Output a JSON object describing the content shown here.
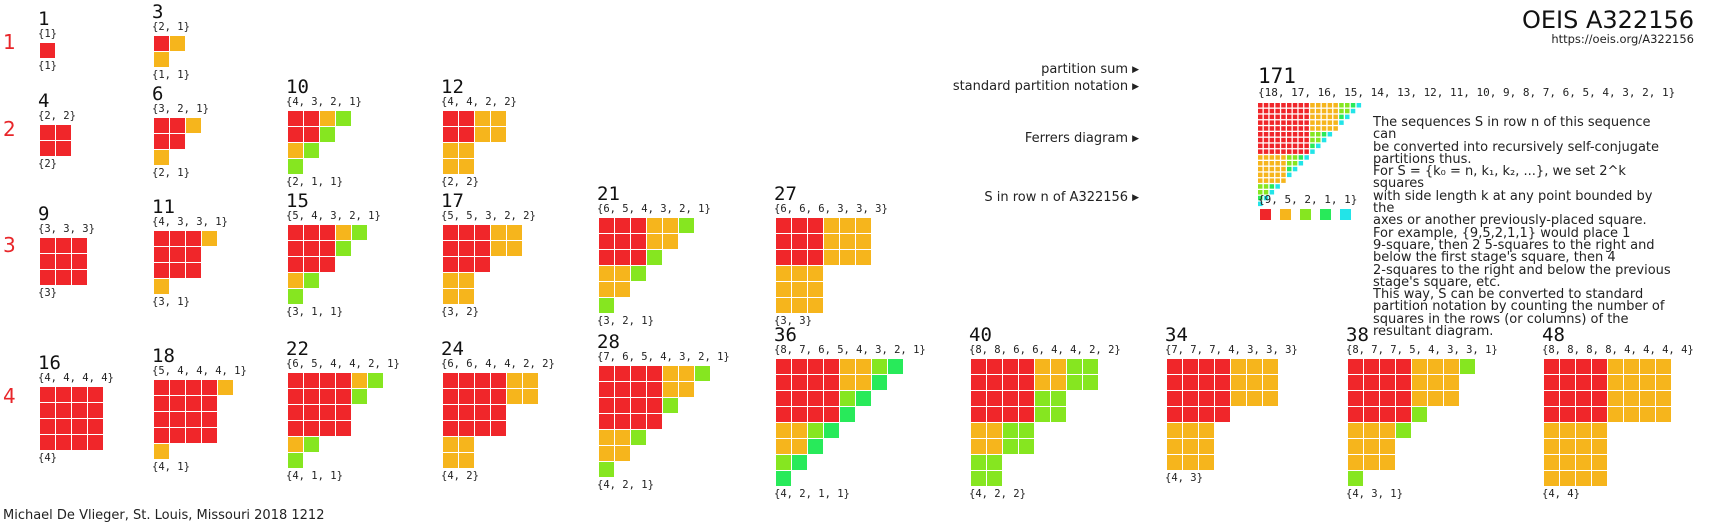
{
  "header": {
    "title": "OEIS A322156",
    "url": "https://oeis.org/A322156"
  },
  "author": "Michael De Vlieger, St. Louis, Missouri 2018 1212",
  "colors": {
    "k4": "#f0262a",
    "k3": "#f6b51c",
    "k2": "#f2bd20",
    "k1": "#86e620",
    "k0": "#28ea5a",
    "kminus": "#22e4e8",
    "row_label": "#e8262a"
  },
  "rows": [
    "1",
    "2",
    "3",
    "4"
  ],
  "items": [
    {
      "sum": "1",
      "top": "{1}",
      "bottom": "{1}",
      "S": [
        1
      ]
    },
    {
      "sum": "3",
      "top": "{2, 1}",
      "bottom": "{1, 1}",
      "S": [
        1,
        1
      ]
    },
    {
      "sum": "4",
      "top": "{2, 2}",
      "bottom": "{2}",
      "S": [
        2
      ]
    },
    {
      "sum": "6",
      "top": "{3, 2, 1}",
      "bottom": "{2, 1}",
      "S": [
        2,
        1
      ]
    },
    {
      "sum": "10",
      "top": "{4, 3, 2, 1}",
      "bottom": "{2, 1, 1}",
      "S": [
        2,
        1,
        1
      ]
    },
    {
      "sum": "12",
      "top": "{4, 4, 2, 2}",
      "bottom": "{2, 2}",
      "S": [
        2,
        2
      ]
    },
    {
      "sum": "9",
      "top": "{3, 3, 3}",
      "bottom": "{3}",
      "S": [
        3
      ]
    },
    {
      "sum": "11",
      "top": "{4, 3, 3, 1}",
      "bottom": "{3, 1}",
      "S": [
        3,
        1
      ]
    },
    {
      "sum": "15",
      "top": "{5, 4, 3, 2, 1}",
      "bottom": "{3, 1, 1}",
      "S": [
        3,
        1,
        1
      ]
    },
    {
      "sum": "17",
      "top": "{5, 5, 3, 2, 2}",
      "bottom": "{3, 2}",
      "S": [
        3,
        2
      ]
    },
    {
      "sum": "21",
      "top": "{6, 5, 4, 3, 2, 1}",
      "bottom": "{3, 2, 1}",
      "S": [
        3,
        2,
        1
      ]
    },
    {
      "sum": "27",
      "top": "{6, 6, 6, 3, 3, 3}",
      "bottom": "{3, 3}",
      "S": [
        3,
        3
      ]
    },
    {
      "sum": "16",
      "top": "{4, 4, 4, 4}",
      "bottom": "{4}",
      "S": [
        4
      ]
    },
    {
      "sum": "18",
      "top": "{5, 4, 4, 4, 1}",
      "bottom": "{4, 1}",
      "S": [
        4,
        1
      ]
    },
    {
      "sum": "22",
      "top": "{6, 5, 4, 4, 2, 1}",
      "bottom": "{4, 1, 1}",
      "S": [
        4,
        1,
        1
      ]
    },
    {
      "sum": "24",
      "top": "{6, 6, 4, 4, 2, 2}",
      "bottom": "{4, 2}",
      "S": [
        4,
        2
      ]
    },
    {
      "sum": "28",
      "top": "{7, 6, 5, 4, 3, 2, 1}",
      "bottom": "{4, 2, 1}",
      "S": [
        4,
        2,
        1
      ]
    },
    {
      "sum": "36",
      "top": "{8, 7, 6, 5, 4, 3, 2, 1}",
      "bottom": "{4, 2, 1, 1}",
      "S": [
        4,
        2,
        1,
        1
      ]
    },
    {
      "sum": "40",
      "top": "{8, 8, 6, 6, 4, 4, 2, 2}",
      "bottom": "{4, 2, 2}",
      "S": [
        4,
        2,
        2
      ]
    },
    {
      "sum": "34",
      "top": "{7, 7, 7, 4, 3, 3, 3}",
      "bottom": "{4, 3}",
      "S": [
        4,
        3
      ]
    },
    {
      "sum": "38",
      "top": "{8, 7, 7, 5, 4, 3, 3, 1}",
      "bottom": "{4, 3, 1}",
      "S": [
        4,
        3,
        1
      ]
    },
    {
      "sum": "48",
      "top": "{8, 8, 8, 8, 4, 4, 4, 4}",
      "bottom": "{4, 4}",
      "S": [
        4,
        4
      ]
    }
  ],
  "legend": {
    "labels": {
      "partition_sum": "partition sum",
      "standard_notation": "standard partition notation",
      "ferrers": "Ferrers diagram",
      "s_row": "S in row n of A322156"
    },
    "sum": "171",
    "standard": "{18, 17, 16, 15, 14, 13, 12, 11, 10, 9, 8, 7, 6, 5, 4, 3, 2, 1}",
    "S_text": "{9, 5, 2, 1, 1}",
    "S": [
      9,
      5,
      2,
      1,
      1
    ],
    "description": [
      "The sequences S in row n of this sequence can",
      "be converted into recursively self-conjugate",
      "partitions thus.",
      "For S = {k₀ = n, k₁, k₂, ...}, we set 2^k squares",
      "with side length k at any point bounded by the",
      "axes or another previously-placed square.",
      "For example, {9,5,2,1,1} would place 1",
      "9-square, then 2 5-squares to the right and",
      "below the first stage's square, then 4",
      "2-squares to the right and below the previous",
      "stage's square, etc.",
      "This way, S can be converted to standard",
      "partition notation by counting the number of",
      "squares in the rows (or columns) of the",
      "resultant diagram."
    ]
  }
}
